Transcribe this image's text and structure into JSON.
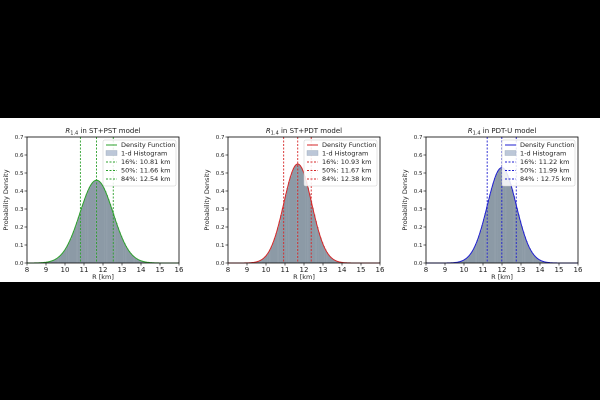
{
  "chart_data": [
    {
      "type": "area",
      "title": "R1.4 in ST+PST model",
      "title_symbol": "R",
      "title_subscript": "1.4",
      "title_rest": " in ST+PST model",
      "xlabel": "R [km]",
      "ylabel": "Probability Density",
      "xlim": [
        8,
        16
      ],
      "ylim": [
        0,
        0.7
      ],
      "xticks": [
        "8",
        "9",
        "10",
        "11",
        "12",
        "13",
        "14",
        "15",
        "16"
      ],
      "yticks": [
        "0.0",
        "0.1",
        "0.2",
        "0.3",
        "0.4",
        "0.5",
        "0.6",
        "0.7"
      ],
      "color": "#2ca02c",
      "density_function": {
        "shape": "normal",
        "mean": 11.66,
        "sigma": 0.87,
        "peak": 0.46
      },
      "percentiles": [
        {
          "label": "16%: 10.81 km",
          "value": 10.81
        },
        {
          "label": "50%: 11.66 km",
          "value": 11.66
        },
        {
          "label": "84%: 12.54 km",
          "value": 12.54
        }
      ],
      "legend": [
        "Density Function",
        "1-d Histogram"
      ],
      "legend_position": "top-right"
    },
    {
      "type": "area",
      "title": "R1.4 in ST+PDT model",
      "title_symbol": "R",
      "title_subscript": "1.4",
      "title_rest": " in ST+PDT model",
      "xlabel": "R [km]",
      "ylabel": "Probability Density",
      "xlim": [
        8,
        16
      ],
      "ylim": [
        0,
        0.7
      ],
      "xticks": [
        "8",
        "9",
        "10",
        "11",
        "12",
        "13",
        "14",
        "15",
        "16"
      ],
      "yticks": [
        "0.0",
        "0.1",
        "0.2",
        "0.3",
        "0.4",
        "0.5",
        "0.6",
        "0.7"
      ],
      "color": "#d62728",
      "density_function": {
        "shape": "normal",
        "mean": 11.67,
        "sigma": 0.73,
        "peak": 0.55
      },
      "percentiles": [
        {
          "label": "16%: 10.93 km",
          "value": 10.93
        },
        {
          "label": "50%: 11.67 km",
          "value": 11.67
        },
        {
          "label": "84%: 12.38 km",
          "value": 12.38
        }
      ],
      "legend": [
        "Density Function",
        "1-d Histogram"
      ],
      "legend_position": "top-right"
    },
    {
      "type": "area",
      "title": "R1.4 in PDT-U model",
      "title_symbol": "R",
      "title_subscript": "1.4",
      "title_rest": " in PDT-U model",
      "xlabel": "R [km]",
      "ylabel": "Probability Density",
      "xlim": [
        8,
        16
      ],
      "ylim": [
        0,
        0.7
      ],
      "xticks": [
        "8",
        "9",
        "10",
        "11",
        "12",
        "13",
        "14",
        "15",
        "16"
      ],
      "yticks": [
        "0.0",
        "0.1",
        "0.2",
        "0.3",
        "0.4",
        "0.5",
        "0.6",
        "0.7"
      ],
      "color": "#1f1fd0",
      "density_function": {
        "shape": "normal",
        "mean": 11.99,
        "sigma": 0.76,
        "peak": 0.53
      },
      "percentiles": [
        {
          "label": "16%: 11.22 km",
          "value": 11.22
        },
        {
          "label": "50%: 11.99 km",
          "value": 11.99
        },
        {
          "label": "84% : 12.75 km",
          "value": 12.75
        }
      ],
      "legend": [
        "Density Function",
        "1-d Histogram"
      ],
      "legend_position": "top-right"
    }
  ]
}
